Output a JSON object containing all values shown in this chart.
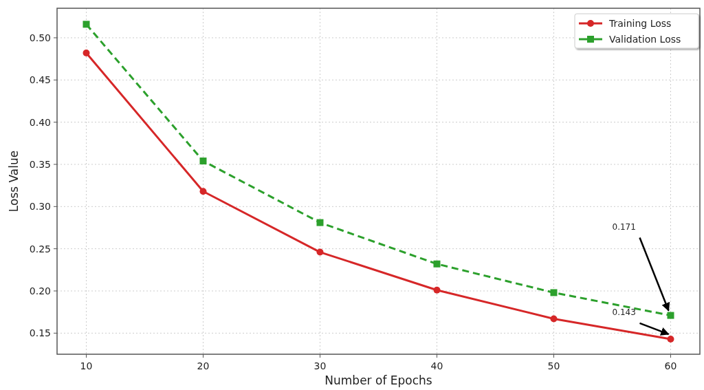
{
  "chart_data": {
    "type": "line",
    "xlabel": "Number of Epochs",
    "ylabel": "Loss Value",
    "x": [
      10,
      20,
      30,
      40,
      50,
      60
    ],
    "series": [
      {
        "name": "Training Loss",
        "color": "#d62728",
        "values": [
          0.482,
          0.318,
          0.246,
          0.201,
          0.167,
          0.143
        ],
        "marker": "circle",
        "line_style": "solid"
      },
      {
        "name": "Validation Loss",
        "color": "#2ca02c",
        "values": [
          0.516,
          0.354,
          0.281,
          0.232,
          0.198,
          0.171
        ],
        "marker": "square",
        "line_style": "dashed"
      }
    ],
    "xlim": [
      7.5,
      62.5
    ],
    "xticks": [
      10,
      20,
      30,
      40,
      50,
      60
    ],
    "ylim": [
      0.125,
      0.535
    ],
    "yticks": [
      {
        "value": 0.15,
        "label": "0.15"
      },
      {
        "value": 0.2,
        "label": "0.20"
      },
      {
        "value": 0.25,
        "label": "0.25"
      },
      {
        "value": 0.3,
        "label": "0.30"
      },
      {
        "value": 0.35,
        "label": "0.35"
      },
      {
        "value": 0.4,
        "label": "0.40"
      },
      {
        "value": 0.45,
        "label": "0.45"
      },
      {
        "value": 0.5,
        "label": "0.50"
      }
    ],
    "grid": true,
    "legend": "top right",
    "annotations": [
      {
        "text": "0.171",
        "x": 60,
        "y": 0.171
      },
      {
        "text": "0.143",
        "x": 60,
        "y": 0.143
      }
    ]
  }
}
